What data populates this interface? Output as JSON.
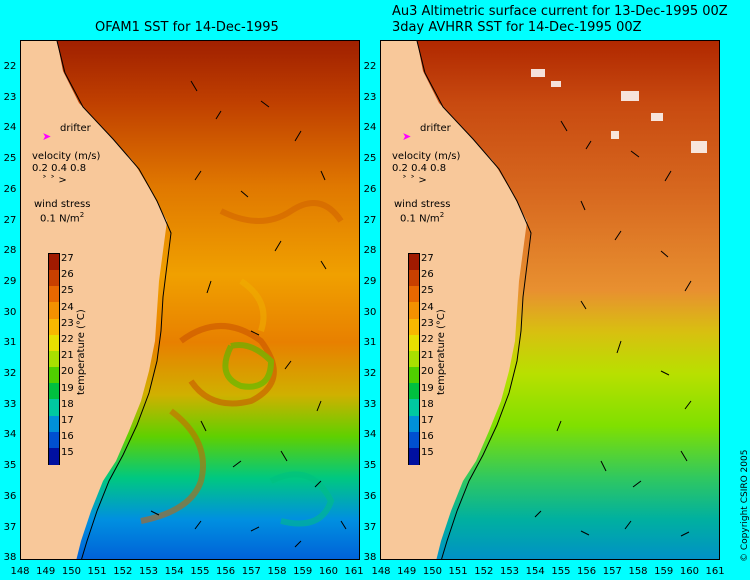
{
  "left_title": "OFAM1 SST for 14-Dec-1995",
  "right_title_line1": "Au3 Altimetric surface current for 13-Dec-1995 00Z",
  "right_title_line2": "3day AVHRR SST for 14-Dec-1995 00Z",
  "y_axis_labels": [
    "22",
    "23",
    "24",
    "25",
    "26",
    "27",
    "28",
    "29",
    "30",
    "31",
    "32",
    "33",
    "34",
    "35",
    "36",
    "37",
    "38"
  ],
  "x_axis_labels": [
    "148",
    "149",
    "150",
    "151",
    "152",
    "153",
    "154",
    "155",
    "156",
    "157",
    "158",
    "159",
    "160",
    "161"
  ],
  "legend": {
    "drifter_label": "drifter",
    "velocity_label": "velocity (m/s)",
    "velocity_scale": "0.2 0.4 0.8",
    "wind_label": "wind stress",
    "wind_scale": "0.1 N/m",
    "wind_scale_sup": "2"
  },
  "colorbar": {
    "title": "temperature (°C)",
    "ticks": [
      "27",
      "26",
      "25",
      "24",
      "23",
      "22",
      "21",
      "20",
      "19",
      "18",
      "17",
      "16",
      "15"
    ],
    "colors": [
      "#a01a00",
      "#c84000",
      "#e86800",
      "#f49000",
      "#f8b800",
      "#e8e000",
      "#a8e000",
      "#50d000",
      "#00c040",
      "#00c8a0",
      "#0090d8",
      "#0050d0",
      "#0010a0"
    ]
  },
  "copyright": "© Copyright CSIRO 2005",
  "colors": {
    "land": "#f8c89a",
    "ocean_background": "#00ffff",
    "drifter": "#ff00ff"
  }
}
